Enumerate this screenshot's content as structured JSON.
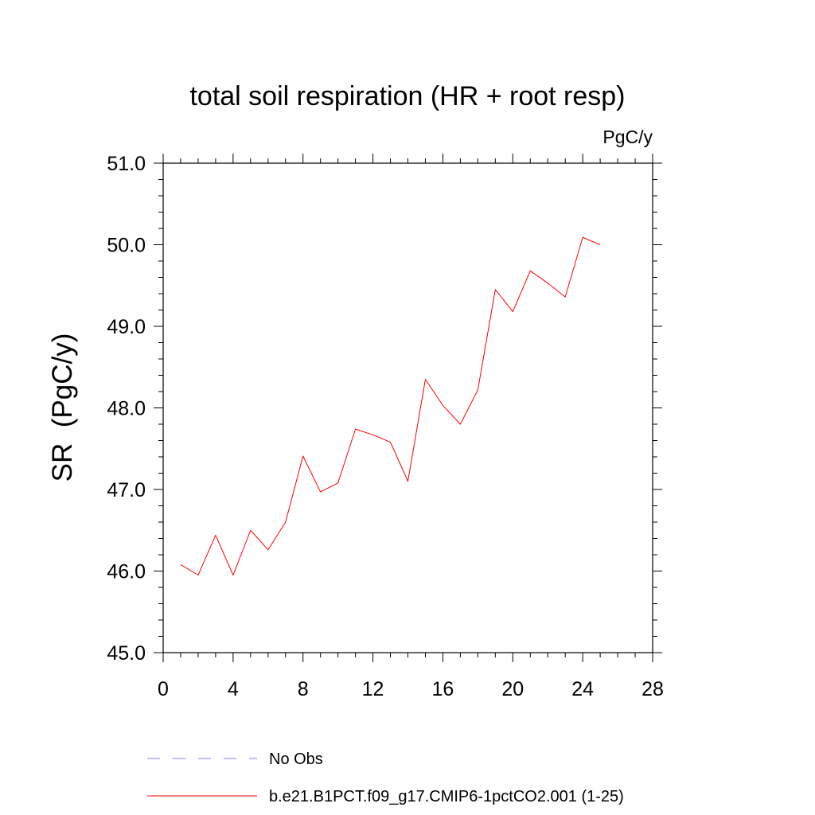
{
  "chart_data": {
    "type": "line",
    "title": "total soil respiration (HR + root resp)",
    "units_label": "PgC/y",
    "ylabel": "SR  (PgC/y)",
    "xlabel": "",
    "xlim": [
      0,
      28
    ],
    "ylim": [
      45.0,
      51.0
    ],
    "xticks": [
      0,
      4,
      8,
      12,
      16,
      20,
      24,
      28
    ],
    "yticks": [
      45.0,
      46.0,
      47.0,
      48.0,
      49.0,
      50.0,
      51.0
    ],
    "ytick_labels": [
      "45.0",
      "46.0",
      "47.0",
      "48.0",
      "49.0",
      "50.0",
      "51.0"
    ],
    "grid": false,
    "legend_placement": "bottom",
    "series": [
      {
        "name": "b.e21.B1PCT.f09_g17.CMIP6-1pctCO2.001 (1-25)",
        "color": "#ff0000",
        "style": "solid",
        "x": [
          1,
          2,
          3,
          4,
          5,
          6,
          7,
          8,
          9,
          10,
          11,
          12,
          13,
          14,
          15,
          16,
          17,
          18,
          19,
          20,
          21,
          22,
          23,
          24,
          25
        ],
        "y": [
          46.08,
          45.95,
          46.44,
          45.95,
          46.5,
          46.26,
          46.6,
          47.41,
          46.97,
          47.08,
          47.74,
          47.67,
          47.58,
          47.1,
          48.35,
          48.03,
          47.8,
          48.22,
          49.45,
          49.18,
          49.68,
          49.53,
          49.36,
          50.09,
          50.0
        ]
      }
    ],
    "legend": [
      {
        "label": "No Obs",
        "color": "#8080ff",
        "style": "dashed"
      },
      {
        "label": "b.e21.B1PCT.f09_g17.CMIP6-1pctCO2.001 (1-25)",
        "color": "#ff0000",
        "style": "solid"
      }
    ]
  }
}
